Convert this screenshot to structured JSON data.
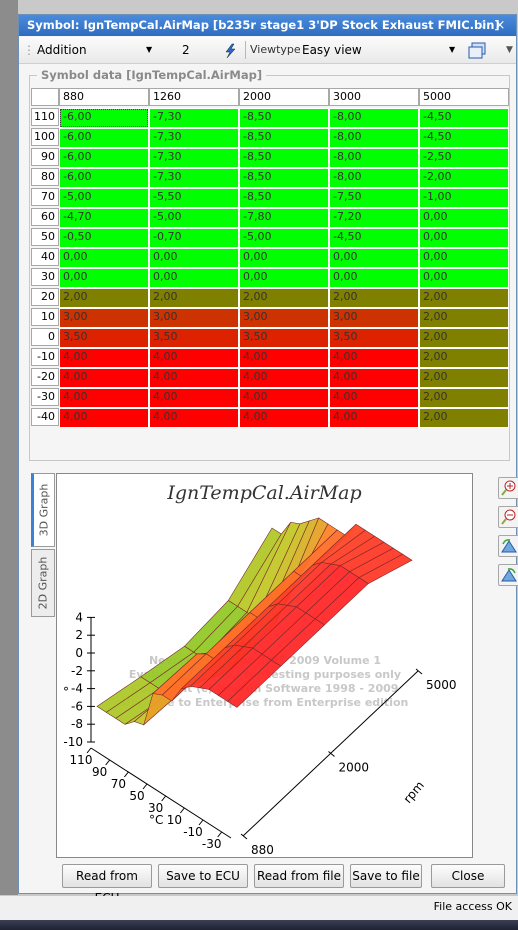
{
  "window": {
    "title": "Symbol: IgnTempCal.AirMap [b235r stage1 3'DP Stock Exhaust FMIC.bin]",
    "pin_glyph": "ₐ",
    "close_glyph": "×"
  },
  "toolbar": {
    "operation": "Addition",
    "operand": "2",
    "viewtype_label": "Viewtype",
    "viewtype_value": "Easy view"
  },
  "group_label": "Symbol data [IgnTempCal.AirMap]",
  "table": {
    "columns": [
      "880",
      "1260",
      "2000",
      "3000",
      "5000"
    ],
    "rows": [
      {
        "label": "110",
        "cells": [
          "-6,00",
          "-7,30",
          "-8,50",
          "-8,00",
          "-4,50"
        ],
        "colors": [
          "#00ff00",
          "#00ff00",
          "#00ff00",
          "#00ff00",
          "#00ff00"
        ]
      },
      {
        "label": "100",
        "cells": [
          "-6,00",
          "-7,30",
          "-8,50",
          "-8,00",
          "-4,50"
        ],
        "colors": [
          "#00ff00",
          "#00ff00",
          "#00ff00",
          "#00ff00",
          "#00ff00"
        ]
      },
      {
        "label": "90",
        "cells": [
          "-6,00",
          "-7,30",
          "-8,50",
          "-8,00",
          "-2,50"
        ],
        "colors": [
          "#00ff00",
          "#00ff00",
          "#00ff00",
          "#00ff00",
          "#00ff00"
        ]
      },
      {
        "label": "80",
        "cells": [
          "-6,00",
          "-7,30",
          "-8,50",
          "-8,00",
          "-2,00"
        ],
        "colors": [
          "#00ff00",
          "#00ff00",
          "#00ff00",
          "#00ff00",
          "#00ff00"
        ]
      },
      {
        "label": "70",
        "cells": [
          "-5,00",
          "-5,50",
          "-8,50",
          "-7,50",
          "-1,00"
        ],
        "colors": [
          "#00ff00",
          "#00ff00",
          "#00ff00",
          "#00ff00",
          "#00ff00"
        ]
      },
      {
        "label": "60",
        "cells": [
          "-4,70",
          "-5,00",
          "-7,80",
          "-7,20",
          "0,00"
        ],
        "colors": [
          "#00ff00",
          "#00ff00",
          "#00ff00",
          "#00ff00",
          "#00ff00"
        ]
      },
      {
        "label": "50",
        "cells": [
          "-0,50",
          "-0,70",
          "-5,00",
          "-4,50",
          "0,00"
        ],
        "colors": [
          "#00ff00",
          "#00ff00",
          "#00ff00",
          "#00ff00",
          "#00ff00"
        ]
      },
      {
        "label": "40",
        "cells": [
          "0,00",
          "0,00",
          "0,00",
          "0,00",
          "0,00"
        ],
        "colors": [
          "#00ff00",
          "#00ff00",
          "#00ff00",
          "#00ff00",
          "#00ff00"
        ]
      },
      {
        "label": "30",
        "cells": [
          "0,00",
          "0,00",
          "0,00",
          "0,00",
          "0,00"
        ],
        "colors": [
          "#00ff00",
          "#00ff00",
          "#00ff00",
          "#00ff00",
          "#00ff00"
        ]
      },
      {
        "label": "20",
        "cells": [
          "2,00",
          "2,00",
          "2,00",
          "2,00",
          "2,00"
        ],
        "colors": [
          "#808000",
          "#808000",
          "#808000",
          "#808000",
          "#808000"
        ]
      },
      {
        "label": "10",
        "cells": [
          "3,00",
          "3,00",
          "3,00",
          "3,00",
          "2,00"
        ],
        "colors": [
          "#cc3300",
          "#cc3300",
          "#cc3300",
          "#cc3300",
          "#808000"
        ]
      },
      {
        "label": "0",
        "cells": [
          "3,50",
          "3,50",
          "3,50",
          "3,50",
          "2,00"
        ],
        "colors": [
          "#dd2200",
          "#dd2200",
          "#dd2200",
          "#dd2200",
          "#808000"
        ]
      },
      {
        "label": "-10",
        "cells": [
          "4,00",
          "4,00",
          "4,00",
          "4,00",
          "2,00"
        ],
        "colors": [
          "#ff0000",
          "#ff0000",
          "#ff0000",
          "#ff0000",
          "#808000"
        ]
      },
      {
        "label": "-20",
        "cells": [
          "4,00",
          "4,00",
          "4,00",
          "4,00",
          "2,00"
        ],
        "colors": [
          "#ff0000",
          "#ff0000",
          "#ff0000",
          "#ff0000",
          "#808000"
        ]
      },
      {
        "label": "-30",
        "cells": [
          "4,00",
          "4,00",
          "4,00",
          "4,00",
          "2,00"
        ],
        "colors": [
          "#ff0000",
          "#ff0000",
          "#ff0000",
          "#ff0000",
          "#808000"
        ]
      },
      {
        "label": "-40",
        "cells": [
          "4,00",
          "4,00",
          "4,00",
          "4,00",
          "2,00"
        ],
        "colors": [
          "#ff0000",
          "#ff0000",
          "#ff0000",
          "#ff0000",
          "#808000"
        ]
      }
    ]
  },
  "graph": {
    "title": "IgnTempCal.AirMap",
    "tabs": [
      "3D Graph",
      "2D Graph"
    ],
    "watermark": [
      "Nevron Chart for .NET 2009 Volume 1",
      "Evaluation Mode - for testing purposes only",
      "Copyright (c) Nevron Software 1998 - 2009",
      "Upgrade to Enterprise from Enterprise edition"
    ],
    "z_ticks": [
      "4",
      "2",
      "0",
      "-2",
      "-4",
      "-6",
      "-8",
      "-10"
    ],
    "z_label": "°",
    "temp_ticks": [
      "110",
      "90",
      "70",
      "50",
      "30",
      "10",
      "-10",
      "-30"
    ],
    "temp_label": "°C",
    "rpm_ticks": [
      "5000",
      "2000",
      "880"
    ],
    "rpm_label": "rpm"
  },
  "buttons": {
    "read_ecu": "Read from ECU",
    "save_ecu": "Save to ECU",
    "read_file": "Read from file",
    "save_file": "Save to file",
    "close": "Close"
  },
  "status": "File access OK",
  "chart_data": {
    "type": "surface3d",
    "title": "IgnTempCal.AirMap",
    "x_axis": {
      "label": "rpm",
      "values": [
        880,
        1260,
        2000,
        3000,
        5000
      ]
    },
    "y_axis": {
      "label": "°C",
      "values": [
        110,
        100,
        90,
        80,
        70,
        60,
        50,
        40,
        30,
        20,
        10,
        0,
        -10,
        -20,
        -30,
        -40
      ]
    },
    "z_axis": {
      "label": "°",
      "range": [
        -10,
        4
      ]
    },
    "z": [
      [
        -6.0,
        -7.3,
        -8.5,
        -8.0,
        -4.5
      ],
      [
        -6.0,
        -7.3,
        -8.5,
        -8.0,
        -4.5
      ],
      [
        -6.0,
        -7.3,
        -8.5,
        -8.0,
        -2.5
      ],
      [
        -6.0,
        -7.3,
        -8.5,
        -8.0,
        -2.0
      ],
      [
        -5.0,
        -5.5,
        -8.5,
        -7.5,
        -1.0
      ],
      [
        -4.7,
        -5.0,
        -7.8,
        -7.2,
        0.0
      ],
      [
        -0.5,
        -0.7,
        -5.0,
        -4.5,
        0.0
      ],
      [
        0.0,
        0.0,
        0.0,
        0.0,
        0.0
      ],
      [
        0.0,
        0.0,
        0.0,
        0.0,
        0.0
      ],
      [
        2.0,
        2.0,
        2.0,
        2.0,
        2.0
      ],
      [
        3.0,
        3.0,
        3.0,
        3.0,
        2.0
      ],
      [
        3.5,
        3.5,
        3.5,
        3.5,
        2.0
      ],
      [
        4.0,
        4.0,
        4.0,
        4.0,
        2.0
      ],
      [
        4.0,
        4.0,
        4.0,
        4.0,
        2.0
      ],
      [
        4.0,
        4.0,
        4.0,
        4.0,
        2.0
      ],
      [
        4.0,
        4.0,
        4.0,
        4.0,
        2.0
      ]
    ]
  }
}
